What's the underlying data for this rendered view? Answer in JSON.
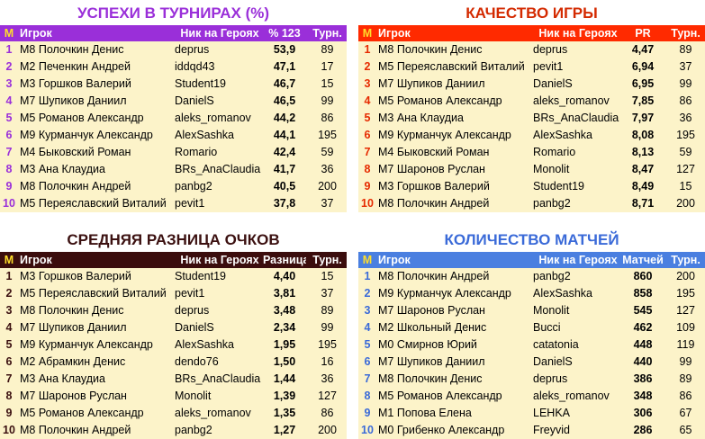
{
  "tables": [
    {
      "title": "УСПЕХИ В ТУРНИРАХ (%)",
      "headers": [
        "М",
        "Игрок",
        "Ник на Героях",
        "% 123",
        "Турн."
      ],
      "rows": [
        [
          1,
          "М8 Полочкин Денис",
          "deprus",
          "53,9",
          89
        ],
        [
          2,
          "М2 Печенкин Андрей",
          "iddqd43",
          "47,1",
          17
        ],
        [
          3,
          "М3 Горшков Валерий",
          "Student19",
          "46,7",
          15
        ],
        [
          4,
          "М7 Шупиков Даниил",
          "DanielS",
          "46,5",
          99
        ],
        [
          5,
          "М5 Романов Александр",
          "aleks_romanov",
          "44,2",
          86
        ],
        [
          6,
          "М9 Курманчук Александр",
          "AlexSashka",
          "44,1",
          195
        ],
        [
          7,
          "М4 Быковский Роман",
          "Romario",
          "42,4",
          59
        ],
        [
          8,
          "М3 Ана Клаудиа",
          "BRs_AnaClaudia",
          "41,7",
          36
        ],
        [
          9,
          "М8 Полочкин Андрей",
          "panbg2",
          "40,5",
          200
        ],
        [
          10,
          "М5 Переяславский Виталий",
          "pevit1",
          "37,8",
          37
        ]
      ]
    },
    {
      "title": "КАЧЕСТВО ИГРЫ",
      "headers": [
        "М",
        "Игрок",
        "Ник на Героях",
        "PR",
        "Турн."
      ],
      "rows": [
        [
          1,
          "М8 Полочкин Денис",
          "deprus",
          "4,47",
          89
        ],
        [
          2,
          "М5 Переяславский Виталий",
          "pevit1",
          "6,94",
          37
        ],
        [
          3,
          "М7 Шупиков Даниил",
          "DanielS",
          "6,95",
          99
        ],
        [
          4,
          "М5 Романов Александр",
          "aleks_romanov",
          "7,85",
          86
        ],
        [
          5,
          "М3 Ана Клаудиа",
          "BRs_AnaClaudia",
          "7,97",
          36
        ],
        [
          6,
          "М9 Курманчук Александр",
          "AlexSashka",
          "8,08",
          195
        ],
        [
          7,
          "М4 Быковский Роман",
          "Romario",
          "8,13",
          59
        ],
        [
          8,
          "М7 Шаронов Руслан",
          "Monolit",
          "8,47",
          127
        ],
        [
          9,
          "М3 Горшков Валерий",
          "Student19",
          "8,49",
          15
        ],
        [
          10,
          "М8 Полочкин Андрей",
          "panbg2",
          "8,71",
          200
        ]
      ]
    },
    {
      "title": "СРЕДНЯЯ РАЗНИЦА ОЧКОВ",
      "headers": [
        "М",
        "Игрок",
        "Ник на Героях",
        "Разница",
        "Турн."
      ],
      "rows": [
        [
          1,
          "М3 Горшков Валерий",
          "Student19",
          "4,40",
          15
        ],
        [
          2,
          "М5 Переяславский Виталий",
          "pevit1",
          "3,81",
          37
        ],
        [
          3,
          "М8 Полочкин Денис",
          "deprus",
          "3,48",
          89
        ],
        [
          4,
          "М7 Шупиков Даниил",
          "DanielS",
          "2,34",
          99
        ],
        [
          5,
          "М9 Курманчук Александр",
          "AlexSashka",
          "1,95",
          195
        ],
        [
          6,
          "М2 Абрамкин Денис",
          "dendo76",
          "1,50",
          16
        ],
        [
          7,
          "М3 Ана Клаудиа",
          "BRs_AnaClaudia",
          "1,44",
          36
        ],
        [
          8,
          "М7 Шаронов Руслан",
          "Monolit",
          "1,39",
          127
        ],
        [
          9,
          "М5 Романов Александр",
          "aleks_romanov",
          "1,35",
          86
        ],
        [
          10,
          "М8 Полочкин Андрей",
          "panbg2",
          "1,27",
          200
        ]
      ]
    },
    {
      "title": "КОЛИЧЕСТВО МАТЧЕЙ",
      "headers": [
        "М",
        "Игрок",
        "Ник на Героях",
        "Матчей",
        "Турн."
      ],
      "rows": [
        [
          1,
          "М8 Полочкин Андрей",
          "panbg2",
          860,
          200
        ],
        [
          2,
          "М9 Курманчук Александр",
          "AlexSashka",
          858,
          195
        ],
        [
          3,
          "М7 Шаронов Руслан",
          "Monolit",
          545,
          127
        ],
        [
          4,
          "М2 Школьный Денис",
          "Bucci",
          462,
          109
        ],
        [
          5,
          "М0 Смирнов Юрий",
          "catatonia",
          448,
          119
        ],
        [
          6,
          "М7 Шупиков Даниил",
          "DanielS",
          440,
          99
        ],
        [
          7,
          "М8 Полочкин Денис",
          "deprus",
          386,
          89
        ],
        [
          8,
          "М5 Романов Александр",
          "aleks_romanov",
          348,
          86
        ],
        [
          9,
          "М1 Попова Елена",
          "LEHKA",
          306,
          67
        ],
        [
          10,
          "М0 Грибенко Александр",
          "Freyvid",
          286,
          65
        ]
      ]
    }
  ]
}
